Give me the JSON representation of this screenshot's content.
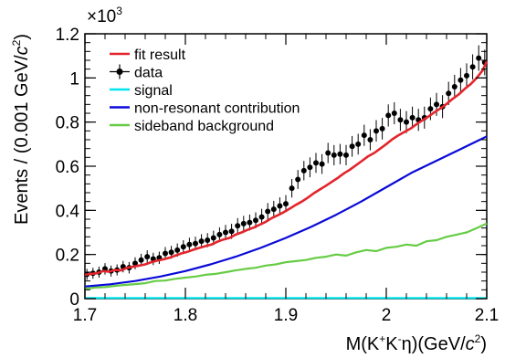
{
  "chart_data": {
    "type": "line",
    "title": "",
    "xlim": [
      1.7,
      2.1
    ],
    "ylim": [
      0,
      1200
    ],
    "x_ticks": [
      1.7,
      1.8,
      1.9,
      2.0,
      2.1
    ],
    "x_tick_labels": [
      "1.7",
      "1.8",
      "1.9",
      "2",
      "2.1"
    ],
    "y_ticks": [
      0,
      200,
      400,
      600,
      800,
      1000,
      1200
    ],
    "y_tick_labels": [
      "0",
      "0.2",
      "0.4",
      "0.6",
      "0.8",
      "1",
      "1.2"
    ],
    "y_multiplier": "×10",
    "y_multiplier_exp": "3",
    "xlabel": {
      "pre": "M(K",
      "sup1": "+",
      "mid": "K",
      "sup2": "-",
      "post": "η)(GeV/",
      "c": "c",
      "sup3": "2",
      "end": ")"
    },
    "ylabel": {
      "pre": "Events / (0.001 GeV/",
      "c": "c",
      "sup": "2",
      "end": ")"
    },
    "legend_position": "top-left",
    "colors": {
      "fit": "#e3242b",
      "data": "#000000",
      "signal": "#00e5ee",
      "nonres": "#0a0ad8",
      "sideband": "#66cc44"
    },
    "legend": [
      {
        "label": "fit result",
        "key": "fit"
      },
      {
        "label": "data",
        "key": "data"
      },
      {
        "label": "signal",
        "key": "signal"
      },
      {
        "label": "non-resonant contribution",
        "key": "nonres"
      },
      {
        "label": "sideband background",
        "key": "sideband"
      }
    ],
    "series": [
      {
        "name": "data",
        "type": "points",
        "x": [
          1.702,
          1.708,
          1.714,
          1.72,
          1.726,
          1.732,
          1.738,
          1.744,
          1.75,
          1.756,
          1.762,
          1.768,
          1.774,
          1.78,
          1.786,
          1.792,
          1.798,
          1.804,
          1.81,
          1.816,
          1.822,
          1.828,
          1.834,
          1.84,
          1.846,
          1.852,
          1.858,
          1.864,
          1.87,
          1.876,
          1.882,
          1.888,
          1.894,
          1.9,
          1.906,
          1.912,
          1.918,
          1.924,
          1.93,
          1.936,
          1.942,
          1.948,
          1.954,
          1.96,
          1.966,
          1.972,
          1.978,
          1.984,
          1.99,
          1.996,
          2.002,
          2.008,
          2.014,
          2.02,
          2.026,
          2.032,
          2.038,
          2.044,
          2.05,
          2.056,
          2.062,
          2.068,
          2.074,
          2.08,
          2.086,
          2.092,
          2.098
        ],
        "y": [
          110,
          115,
          120,
          135,
          125,
          130,
          145,
          140,
          160,
          175,
          190,
          180,
          185,
          205,
          210,
          220,
          235,
          245,
          250,
          260,
          265,
          275,
          290,
          300,
          305,
          330,
          340,
          345,
          355,
          370,
          395,
          405,
          420,
          430,
          500,
          540,
          580,
          595,
          615,
          610,
          660,
          650,
          655,
          650,
          690,
          700,
          740,
          720,
          760,
          770,
          830,
          840,
          810,
          800,
          820,
          810,
          820,
          860,
          880,
          870,
          930,
          960,
          990,
          1010,
          1050,
          1090,
          1070
        ],
        "yerr": [
          25,
          25,
          25,
          26,
          25,
          25,
          26,
          26,
          27,
          28,
          29,
          28,
          28,
          29,
          29,
          30,
          30,
          31,
          31,
          32,
          32,
          33,
          33,
          34,
          34,
          35,
          35,
          36,
          36,
          37,
          38,
          38,
          39,
          39,
          42,
          43,
          44,
          45,
          45,
          45,
          46,
          46,
          46,
          46,
          47,
          47,
          48,
          48,
          49,
          49,
          50,
          50,
          50,
          50,
          50,
          50,
          50,
          51,
          52,
          52,
          53,
          54,
          55,
          56,
          57,
          58,
          58
        ]
      },
      {
        "name": "fit result",
        "type": "line",
        "x": [
          1.7,
          1.706,
          1.712,
          1.718,
          1.724,
          1.73,
          1.736,
          1.742,
          1.748,
          1.754,
          1.76,
          1.766,
          1.772,
          1.778,
          1.784,
          1.79,
          1.796,
          1.802,
          1.808,
          1.814,
          1.82,
          1.826,
          1.832,
          1.838,
          1.844,
          1.85,
          1.856,
          1.862,
          1.868,
          1.874,
          1.88,
          1.886,
          1.892,
          1.898,
          1.904,
          1.91,
          1.916,
          1.922,
          1.928,
          1.934,
          1.94,
          1.946,
          1.952,
          1.958,
          1.964,
          1.97,
          1.976,
          1.982,
          1.988,
          1.994,
          2.0,
          2.006,
          2.012,
          2.018,
          2.024,
          2.03,
          2.036,
          2.042,
          2.048,
          2.054,
          2.06,
          2.066,
          2.072,
          2.078,
          2.084,
          2.09,
          2.096,
          2.1
        ],
        "y": [
          108,
          112,
          115,
          125,
          122,
          130,
          128,
          140,
          145,
          150,
          155,
          165,
          172,
          178,
          185,
          195,
          205,
          212,
          222,
          230,
          238,
          245,
          258,
          268,
          275,
          290,
          300,
          312,
          322,
          335,
          348,
          365,
          378,
          392,
          408,
          425,
          440,
          458,
          478,
          495,
          512,
          530,
          548,
          568,
          585,
          605,
          625,
          645,
          660,
          680,
          700,
          722,
          740,
          755,
          770,
          790,
          808,
          825,
          845,
          862,
          882,
          905,
          925,
          950,
          972,
          1000,
          1035,
          1075
        ]
      },
      {
        "name": "non-resonant contribution",
        "type": "line",
        "x": [
          1.7,
          1.725,
          1.75,
          1.775,
          1.8,
          1.825,
          1.85,
          1.875,
          1.9,
          1.925,
          1.95,
          1.975,
          2.0,
          2.025,
          2.05,
          2.075,
          2.1
        ],
        "y": [
          55,
          65,
          80,
          100,
          125,
          155,
          190,
          230,
          275,
          325,
          380,
          440,
          505,
          570,
          625,
          680,
          735
        ]
      },
      {
        "name": "sideband background",
        "type": "line",
        "x": [
          1.7,
          1.71,
          1.72,
          1.73,
          1.74,
          1.75,
          1.76,
          1.77,
          1.78,
          1.79,
          1.8,
          1.81,
          1.82,
          1.83,
          1.84,
          1.85,
          1.86,
          1.87,
          1.88,
          1.89,
          1.9,
          1.91,
          1.92,
          1.93,
          1.94,
          1.95,
          1.96,
          1.97,
          1.98,
          1.99,
          2.0,
          2.01,
          2.02,
          2.03,
          2.04,
          2.05,
          2.06,
          2.07,
          2.08,
          2.09,
          2.1
        ],
        "y": [
          45,
          50,
          52,
          58,
          62,
          66,
          70,
          80,
          82,
          90,
          95,
          100,
          108,
          112,
          120,
          128,
          135,
          140,
          150,
          155,
          165,
          170,
          175,
          185,
          190,
          200,
          195,
          210,
          220,
          215,
          230,
          235,
          245,
          240,
          260,
          265,
          280,
          290,
          300,
          320,
          340
        ]
      },
      {
        "name": "signal",
        "type": "line",
        "x": [
          1.7,
          2.1
        ],
        "y": [
          3,
          3
        ]
      }
    ]
  }
}
